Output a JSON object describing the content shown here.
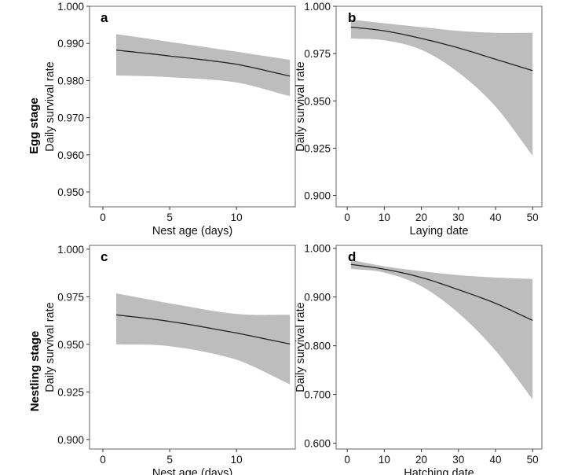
{
  "row_labels": {
    "egg": "Egg stage",
    "nestling": "Nestling stage"
  },
  "chart_data": [
    {
      "type": "line",
      "panel": "a",
      "title": "",
      "xlabel": "Nest age (days)",
      "ylabel": "Daily survival rate",
      "xlim": [
        -1,
        14.4
      ],
      "ylim": [
        0.946,
        1.0
      ],
      "x_ticks": [
        0,
        5,
        10
      ],
      "y_ticks": [
        0.95,
        0.96,
        0.97,
        0.98,
        0.99,
        1.0
      ],
      "x_tick_labels": [
        "0",
        "5",
        "10"
      ],
      "y_tick_labels": [
        "0.950",
        "0.960",
        "0.970",
        "0.980",
        "0.990",
        "1.000"
      ],
      "grid": false,
      "series": [
        {
          "x": [
            1,
            5,
            10,
            14
          ],
          "y": [
            0.9882,
            0.9866,
            0.9844,
            0.9812
          ],
          "lower": [
            0.9814,
            0.9809,
            0.9795,
            0.9758
          ],
          "upper": [
            0.9925,
            0.9904,
            0.9878,
            0.9856
          ]
        }
      ]
    },
    {
      "type": "line",
      "panel": "b",
      "title": "",
      "xlabel": "Laying date",
      "ylabel": "Daily survival rate",
      "xlim": [
        -3,
        52.5
      ],
      "ylim": [
        0.894,
        1.0
      ],
      "x_ticks": [
        0,
        10,
        20,
        30,
        40,
        50
      ],
      "y_ticks": [
        0.9,
        0.925,
        0.95,
        0.975,
        1.0
      ],
      "x_tick_labels": [
        "0",
        "10",
        "20",
        "30",
        "40",
        "50"
      ],
      "y_tick_labels": [
        "0.900",
        "0.925",
        "0.950",
        "0.975",
        "1.000"
      ],
      "grid": false,
      "series": [
        {
          "x": [
            1,
            10,
            20,
            30,
            40,
            50
          ],
          "y": [
            0.989,
            0.987,
            0.983,
            0.978,
            0.972,
            0.966
          ],
          "lower": [
            0.983,
            0.982,
            0.977,
            0.965,
            0.947,
            0.921
          ],
          "upper": [
            0.993,
            0.991,
            0.989,
            0.987,
            0.986,
            0.986
          ]
        }
      ]
    },
    {
      "type": "line",
      "panel": "c",
      "title": "",
      "xlabel": "Nest age (days)",
      "ylabel": "Daily survival rate",
      "xlim": [
        -1,
        14.4
      ],
      "ylim": [
        0.895,
        1.002
      ],
      "x_ticks": [
        0,
        5,
        10
      ],
      "y_ticks": [
        0.9,
        0.925,
        0.95,
        0.975,
        1.0
      ],
      "x_tick_labels": [
        "0",
        "5",
        "10"
      ],
      "y_tick_labels": [
        "0.900",
        "0.925",
        "0.950",
        "0.975",
        "1.000"
      ],
      "grid": false,
      "series": [
        {
          "x": [
            1,
            5,
            10,
            14
          ],
          "y": [
            0.9655,
            0.962,
            0.956,
            0.9502
          ],
          "lower": [
            0.95,
            0.949,
            0.942,
            0.929
          ],
          "upper": [
            0.9768,
            0.9715,
            0.966,
            0.9655
          ]
        }
      ]
    },
    {
      "type": "line",
      "panel": "d",
      "title": "",
      "xlabel": "Hatching date",
      "ylabel": "Daily survival rate",
      "xlim": [
        -3,
        52.5
      ],
      "ylim": [
        0.588,
        1.006
      ],
      "x_ticks": [
        0,
        10,
        20,
        30,
        40,
        50
      ],
      "y_ticks": [
        0.6,
        0.7,
        0.8,
        0.9,
        1.0
      ],
      "x_tick_labels": [
        "0",
        "10",
        "20",
        "30",
        "40",
        "50"
      ],
      "y_tick_labels": [
        "0.600",
        "0.700",
        "0.800",
        "0.900",
        "1.000"
      ],
      "grid": false,
      "series": [
        {
          "x": [
            1,
            10,
            20,
            30,
            40,
            50
          ],
          "y": [
            0.967,
            0.957,
            0.94,
            0.915,
            0.887,
            0.852
          ],
          "lower": [
            0.958,
            0.95,
            0.922,
            0.867,
            0.79,
            0.69
          ],
          "upper": [
            0.976,
            0.963,
            0.953,
            0.945,
            0.94,
            0.937
          ]
        }
      ]
    }
  ],
  "colors": {
    "band": "#bdbdbd",
    "line": "#222222",
    "frame": "#666666"
  }
}
